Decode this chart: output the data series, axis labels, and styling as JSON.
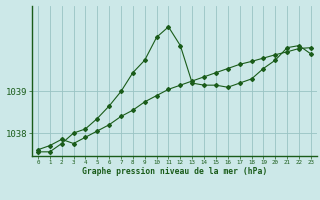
{
  "title": "Graphe pression niveau de la mer (hPa)",
  "bg_color": "#cce8e8",
  "line_color": "#1a5c1a",
  "marker_color": "#1a5c1a",
  "grid_color": "#99c4c4",
  "xlabel_color": "#1a5c1a",
  "xlim": [
    -0.5,
    23.5
  ],
  "ylim": [
    1037.45,
    1041.05
  ],
  "yticks": [
    1038,
    1039
  ],
  "xtick_labels": [
    "0",
    "1",
    "2",
    "3",
    "4",
    "5",
    "6",
    "7",
    "8",
    "9",
    "10",
    "11",
    "12",
    "13",
    "14",
    "15",
    "16",
    "17",
    "18",
    "19",
    "20",
    "21",
    "22",
    "23"
  ],
  "series1_x": [
    0,
    1,
    2,
    3,
    4,
    5,
    6,
    7,
    8,
    9,
    10,
    11,
    12,
    13,
    14,
    15,
    16,
    17,
    18,
    19,
    20,
    21,
    22,
    23
  ],
  "series1_y": [
    1037.55,
    1037.55,
    1037.75,
    1038.0,
    1038.1,
    1038.35,
    1038.65,
    1039.0,
    1039.45,
    1039.75,
    1040.3,
    1040.55,
    1040.1,
    1039.2,
    1039.15,
    1039.15,
    1039.1,
    1039.2,
    1039.3,
    1039.55,
    1039.75,
    1040.05,
    1040.1,
    1039.9
  ],
  "series2_x": [
    0,
    23
  ],
  "series2_y": [
    1037.6,
    1040.05
  ],
  "series2_full_x": [
    0,
    1,
    2,
    3,
    4,
    5,
    6,
    7,
    8,
    9,
    10,
    11,
    12,
    13,
    14,
    15,
    16,
    17,
    18,
    19,
    20,
    21,
    22,
    23
  ],
  "series2_full_y": [
    1037.6,
    1037.7,
    1037.85,
    1037.75,
    1037.9,
    1038.05,
    1038.2,
    1038.4,
    1038.55,
    1038.75,
    1038.9,
    1039.05,
    1039.15,
    1039.25,
    1039.35,
    1039.45,
    1039.55,
    1039.65,
    1039.72,
    1039.8,
    1039.88,
    1039.95,
    1040.03,
    1040.05
  ]
}
